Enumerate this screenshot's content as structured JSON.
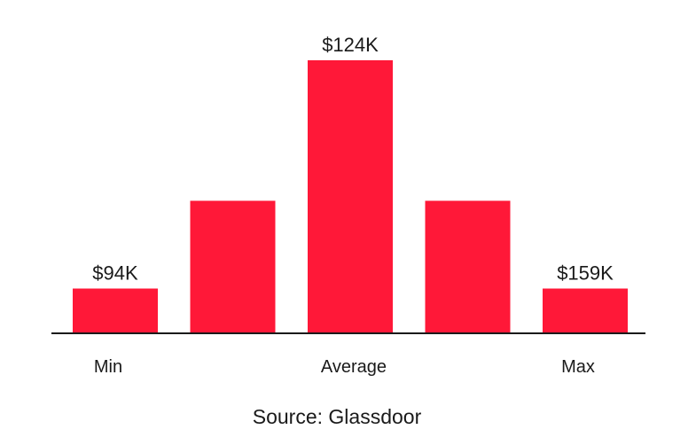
{
  "chart_data": {
    "type": "bar",
    "bar_color": "#ff1838",
    "axis_color": "#1a1a1a",
    "categories": [
      "Min",
      "",
      "Average",
      "",
      "Max"
    ],
    "values": [
      1,
      3,
      6.2,
      3,
      1
    ],
    "value_labels": [
      "$94K",
      "",
      "$124K",
      "",
      "$159K"
    ],
    "ylim": [
      0,
      6.2
    ],
    "grid": false,
    "y_axis_visible": false
  },
  "source_text": "Source: Glassdoor"
}
